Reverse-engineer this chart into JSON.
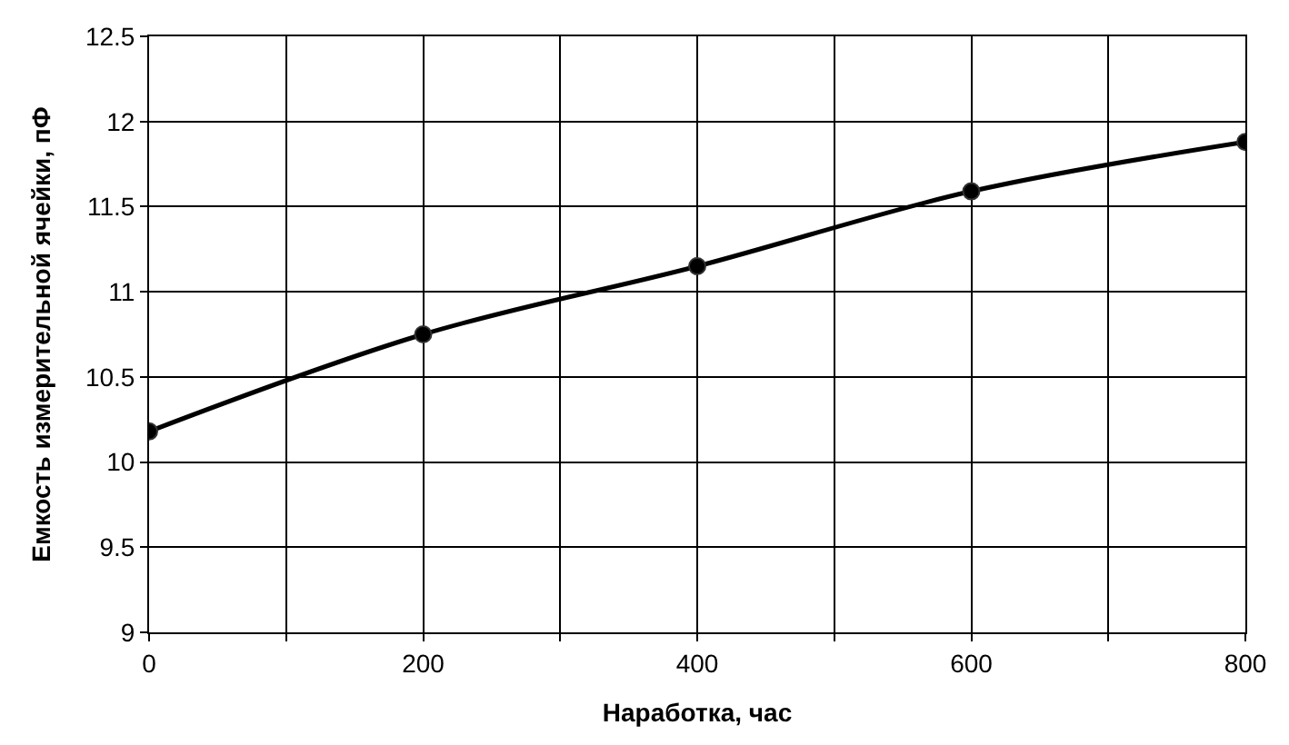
{
  "chart_data": {
    "type": "line",
    "xlabel": "Наработка, час",
    "ylabel": "Емкость измерительной ячейки, пФ",
    "x": [
      0,
      200,
      400,
      600,
      800
    ],
    "series": [
      {
        "color": "#000000",
        "values": [
          10.18,
          10.75,
          11.15,
          11.59,
          11.88
        ]
      }
    ],
    "xlim": [
      0,
      800
    ],
    "xticks": [
      0,
      {
        "value": 100,
        "label": null
      },
      200,
      {
        "value": 300,
        "label": null
      },
      400,
      {
        "value": 500,
        "label": null
      },
      600,
      {
        "value": 700,
        "label": null
      },
      800
    ],
    "ylim": [
      9,
      12.5
    ],
    "yticks": [
      9,
      9.5,
      10,
      10.5,
      11,
      11.5,
      12,
      12.5
    ],
    "grid": true,
    "marker": "circle",
    "line_style": "solid"
  }
}
